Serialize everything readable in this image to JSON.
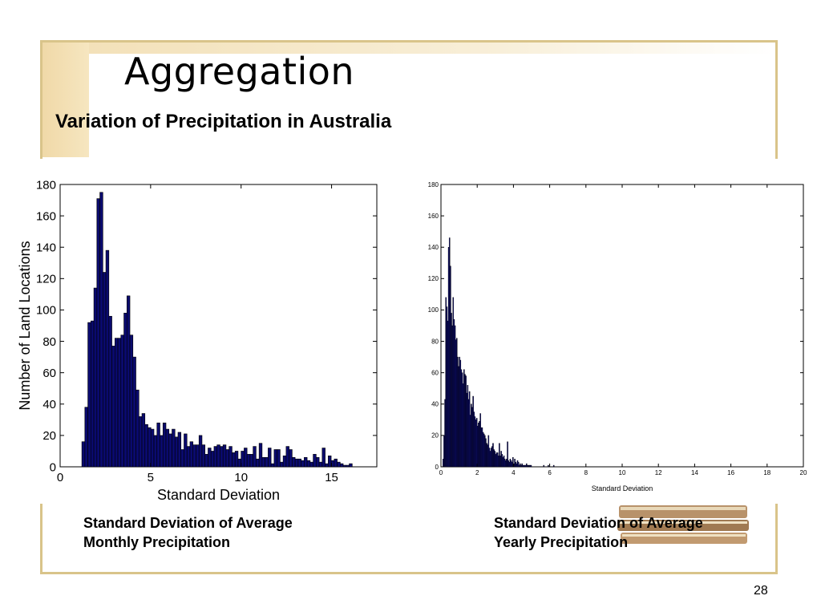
{
  "slide": {
    "title": "Aggregation",
    "subtitle": "Variation of Precipitation in Australia",
    "caption_left_line1": "Standard Deviation of Average",
    "caption_left_line2": "Monthly Precipitation",
    "caption_right_line1": "Standard Deviation of Average",
    "caption_right_line2": "Yearly Precipitation",
    "page_number": "28"
  },
  "colors": {
    "bar_fill": "#0a0a6e",
    "bar_edge": "#000000",
    "frame": "#d9c48a",
    "accent": "#f0d9a8"
  },
  "chart_data": [
    {
      "type": "bar",
      "title": "",
      "xlabel": "Standard Deviation",
      "ylabel": "Number of Land Locations",
      "xlim": [
        0,
        17.5
      ],
      "ylim": [
        0,
        180
      ],
      "xticks": [
        0,
        5,
        10,
        15
      ],
      "yticks": [
        0,
        20,
        40,
        60,
        80,
        100,
        120,
        140,
        160,
        180
      ],
      "grid": false,
      "bin_start": 1.2,
      "bin_width": 0.166,
      "values": [
        16,
        38,
        92,
        93,
        114,
        171,
        175,
        124,
        138,
        96,
        77,
        82,
        82,
        84,
        98,
        109,
        84,
        70,
        49,
        32,
        34,
        27,
        25,
        24,
        20,
        28,
        20,
        28,
        24,
        21,
        24,
        19,
        22,
        11,
        21,
        13,
        16,
        14,
        14,
        20,
        14,
        8,
        12,
        10,
        13,
        14,
        13,
        14,
        11,
        13,
        9,
        10,
        5,
        10,
        12,
        8,
        8,
        13,
        5,
        15,
        6,
        6,
        12,
        2,
        11,
        11,
        3,
        7,
        13,
        11,
        6,
        5,
        5,
        4,
        6,
        4,
        3,
        8,
        6,
        3,
        12,
        2,
        7,
        4,
        5,
        3,
        2,
        1,
        1,
        2
      ]
    },
    {
      "type": "bar",
      "title": "",
      "xlabel": "Standard Deviation",
      "ylabel": "",
      "xlim": [
        0,
        20
      ],
      "ylim": [
        0,
        180
      ],
      "xticks": [
        0,
        2,
        4,
        6,
        8,
        10,
        12,
        14,
        16,
        18,
        20
      ],
      "yticks": [
        0,
        20,
        40,
        60,
        80,
        100,
        120,
        140,
        160,
        180
      ],
      "grid": false,
      "bin_start": 0.1,
      "bin_width": 0.05,
      "values": [
        5,
        20,
        43,
        108,
        102,
        93,
        140,
        146,
        128,
        98,
        90,
        108,
        94,
        90,
        81,
        82,
        70,
        64,
        70,
        68,
        62,
        60,
        53,
        62,
        59,
        58,
        47,
        52,
        43,
        48,
        33,
        40,
        38,
        45,
        35,
        32,
        30,
        31,
        26,
        28,
        29,
        34,
        25,
        25,
        22,
        21,
        20,
        18,
        15,
        14,
        20,
        12,
        10,
        12,
        13,
        15,
        11,
        10,
        8,
        9,
        9,
        7,
        15,
        7,
        10,
        8,
        6,
        7,
        5,
        4,
        5,
        16,
        4,
        3,
        5,
        4,
        3,
        6,
        2,
        5,
        3,
        2,
        4,
        3,
        1,
        2,
        1,
        2,
        1,
        1,
        1,
        1,
        2,
        1,
        1,
        1,
        1,
        1,
        0,
        0,
        0,
        0,
        0,
        0,
        0,
        0,
        0,
        0,
        0,
        0,
        0,
        1,
        0,
        0,
        0,
        0,
        1,
        0,
        0,
        0,
        0,
        0,
        1
      ]
    }
  ]
}
